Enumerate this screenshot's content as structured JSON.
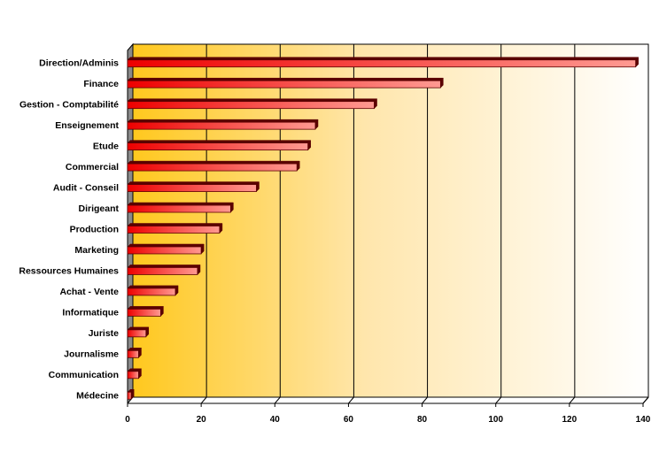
{
  "chart_data": {
    "type": "bar",
    "orientation": "horizontal",
    "categories": [
      "Direction/Adminis",
      "Finance",
      "Gestion - Comptabilité",
      "Enseignement",
      "Etude",
      "Commercial",
      "Audit - Conseil",
      "Dirigeant",
      "Production",
      "Marketing",
      "Ressources Humaines",
      "Achat - Vente",
      "Informatique",
      "Juriste",
      "Journalisme",
      "Communication",
      "Médecine"
    ],
    "values": [
      138,
      85,
      67,
      51,
      49,
      46,
      35,
      28,
      25,
      20,
      19,
      13,
      9,
      5,
      3,
      3,
      1
    ],
    "xlim": [
      0,
      140
    ],
    "xticks": [
      0,
      20,
      40,
      60,
      80,
      100,
      120,
      140
    ],
    "grid": true,
    "legend": "none",
    "colors": {
      "bar_light": "#ff9a92",
      "bar_dark": "#ee0000",
      "bar_top": "#5a0000",
      "bar_edge": "#5a0000",
      "plot_gradient_left": "#ffc81e",
      "plot_gradient_right": "#ffffff",
      "side_wall": "#8a8a8a",
      "gridline": "#000000"
    }
  }
}
